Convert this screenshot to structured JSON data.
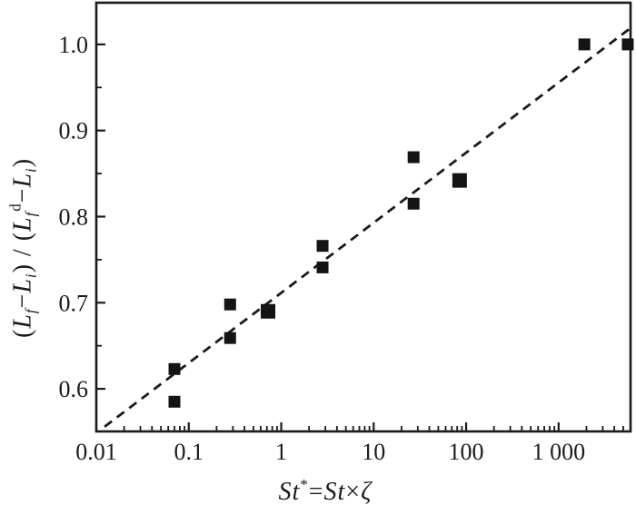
{
  "figure": {
    "background": "#ffffff",
    "ink_color": "#1b1b1b",
    "marker_color": "#141414"
  },
  "chart_data": {
    "type": "scatter",
    "title": "",
    "xlabel_text": "St* = St × ζ",
    "ylabel_text": "(Lf − Li) / (Lfd − Li)",
    "xlabel_tokens": [
      {
        "t": "St",
        "s": "i"
      },
      {
        "t": "*",
        "s": "sup"
      },
      {
        "t": "=",
        "s": "n"
      },
      {
        "t": "St",
        "s": "i"
      },
      {
        "t": "×",
        "s": "n"
      },
      {
        "t": "ζ",
        "s": "i"
      }
    ],
    "ylabel_tokens": [
      {
        "t": "(",
        "s": "n"
      },
      {
        "t": "L",
        "s": "i"
      },
      {
        "t": "f",
        "s": "sub"
      },
      {
        "t": "−",
        "s": "n"
      },
      {
        "t": "L",
        "s": "i"
      },
      {
        "t": "i",
        "s": "sub"
      },
      {
        "t": ") / (",
        "s": "n"
      },
      {
        "t": "L",
        "s": "i"
      },
      {
        "t": "f",
        "s": "sub"
      },
      {
        "t": "d",
        "s": "sup"
      },
      {
        "t": "−",
        "s": "n"
      },
      {
        "t": "L",
        "s": "i"
      },
      {
        "t": "i",
        "s": "sub"
      },
      {
        "t": ")",
        "s": "n"
      }
    ],
    "x_scale": "log",
    "x_range": [
      0.01,
      6000
    ],
    "y_range": [
      0.5505,
      1.0484
    ],
    "grid": false,
    "legend": null,
    "x_major_ticks": [
      {
        "value": 0.01,
        "label": "0.01"
      },
      {
        "value": 0.1,
        "label": "0.1"
      },
      {
        "value": 1,
        "label": "1"
      },
      {
        "value": 10,
        "label": "10"
      },
      {
        "value": 100,
        "label": "100"
      },
      {
        "value": 1000,
        "label": "1 000"
      }
    ],
    "y_major_ticks": [
      {
        "value": 0.6,
        "label": "0.6"
      },
      {
        "value": 0.7,
        "label": "0.7"
      },
      {
        "value": 0.8,
        "label": "0.8"
      },
      {
        "value": 0.9,
        "label": "0.9"
      },
      {
        "value": 1.0,
        "label": "1.0"
      }
    ],
    "y_minor_step": 0.05,
    "marker": "filled-square",
    "points": [
      {
        "x": 0.07,
        "y": 0.623,
        "size": 13
      },
      {
        "x": 0.07,
        "y": 0.585,
        "size": 13
      },
      {
        "x": 0.28,
        "y": 0.698,
        "size": 13
      },
      {
        "x": 0.28,
        "y": 0.659,
        "size": 13
      },
      {
        "x": 0.72,
        "y": 0.69,
        "size": 16
      },
      {
        "x": 2.8,
        "y": 0.766,
        "size": 13
      },
      {
        "x": 2.8,
        "y": 0.741,
        "size": 13
      },
      {
        "x": 27,
        "y": 0.869,
        "size": 13
      },
      {
        "x": 27,
        "y": 0.815,
        "size": 13
      },
      {
        "x": 85,
        "y": 0.842,
        "size": 16
      },
      {
        "x": 1900,
        "y": 1.0,
        "size": 13
      },
      {
        "x": 5600,
        "y": 1.0,
        "size": 13
      }
    ],
    "trendline": {
      "style": "dashed",
      "points": [
        [
          0.0123,
          0.556
        ],
        [
          6000,
          1.019
        ]
      ]
    }
  }
}
